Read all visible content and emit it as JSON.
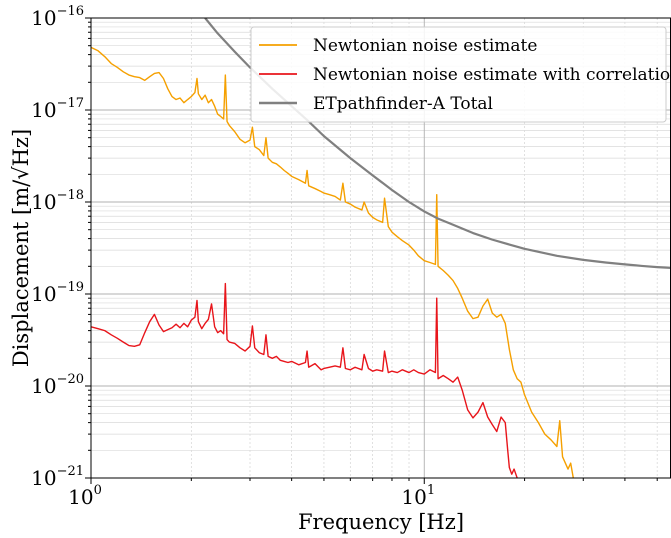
{
  "chart_data": {
    "type": "line",
    "title": "",
    "xlabel": "Frequency [Hz]",
    "ylabel": "Displacement [m/√Hz]",
    "xscale": "log",
    "yscale": "log",
    "xlim": [
      1,
      55
    ],
    "ylim": [
      1e-21,
      1e-16
    ],
    "grid": true,
    "legend_position": "top-right",
    "x_ticks": [
      {
        "value": 1,
        "base": "10",
        "exp": "0"
      },
      {
        "value": 10,
        "base": "10",
        "exp": "1"
      }
    ],
    "y_ticks": [
      {
        "value": 1e-21,
        "base": "10",
        "exp": "−21"
      },
      {
        "value": 1e-20,
        "base": "10",
        "exp": "−20"
      },
      {
        "value": 1e-19,
        "base": "10",
        "exp": "−19"
      },
      {
        "value": 1e-18,
        "base": "10",
        "exp": "−18"
      },
      {
        "value": 1e-17,
        "base": "10",
        "exp": "−17"
      },
      {
        "value": 1e-16,
        "base": "10",
        "exp": "−16"
      }
    ],
    "series": [
      {
        "name": "Newtonian noise estimate",
        "color": "#f5a000",
        "points": [
          [
            1.0,
            4.8e-17
          ],
          [
            1.05,
            4.4e-17
          ],
          [
            1.1,
            3.8e-17
          ],
          [
            1.15,
            3.2e-17
          ],
          [
            1.2,
            2.9e-17
          ],
          [
            1.25,
            2.6e-17
          ],
          [
            1.3,
            2.4e-17
          ],
          [
            1.35,
            2.3e-17
          ],
          [
            1.4,
            2.25e-17
          ],
          [
            1.45,
            2.1e-17
          ],
          [
            1.5,
            2.3e-17
          ],
          [
            1.55,
            2.5e-17
          ],
          [
            1.6,
            2.55e-17
          ],
          [
            1.65,
            2.2e-17
          ],
          [
            1.7,
            1.7e-17
          ],
          [
            1.75,
            1.4e-17
          ],
          [
            1.8,
            1.3e-17
          ],
          [
            1.85,
            1.35e-17
          ],
          [
            1.9,
            1.2e-17
          ],
          [
            1.95,
            1.3e-17
          ],
          [
            2.0,
            1.4e-17
          ],
          [
            2.05,
            1.55e-17
          ],
          [
            2.08,
            2.2e-17
          ],
          [
            2.1,
            1.5e-17
          ],
          [
            2.15,
            1.3e-17
          ],
          [
            2.2,
            1.45e-17
          ],
          [
            2.25,
            1.2e-17
          ],
          [
            2.3,
            1.3e-17
          ],
          [
            2.35,
            1.1e-17
          ],
          [
            2.4,
            9e-18
          ],
          [
            2.45,
            8.5e-18
          ],
          [
            2.5,
            8e-18
          ],
          [
            2.53,
            2.4e-17
          ],
          [
            2.56,
            7.5e-18
          ],
          [
            2.6,
            6.8e-18
          ],
          [
            2.7,
            5.8e-18
          ],
          [
            2.8,
            4.8e-18
          ],
          [
            2.9,
            4.4e-18
          ],
          [
            3.0,
            4.7e-18
          ],
          [
            3.05,
            6.5e-18
          ],
          [
            3.1,
            4e-18
          ],
          [
            3.2,
            3.7e-18
          ],
          [
            3.3,
            3.2e-18
          ],
          [
            3.35,
            5e-18
          ],
          [
            3.4,
            3e-18
          ],
          [
            3.5,
            2.7e-18
          ],
          [
            3.6,
            2.6e-18
          ],
          [
            3.7,
            2.4e-18
          ],
          [
            3.8,
            2.2e-18
          ],
          [
            3.9,
            2.05e-18
          ],
          [
            4.0,
            1.9e-18
          ],
          [
            4.2,
            1.75e-18
          ],
          [
            4.4,
            1.6e-18
          ],
          [
            4.45,
            2.2e-18
          ],
          [
            4.5,
            1.5e-18
          ],
          [
            4.7,
            1.4e-18
          ],
          [
            4.9,
            1.3e-18
          ],
          [
            5.0,
            1.25e-18
          ],
          [
            5.2,
            1.2e-18
          ],
          [
            5.4,
            1.15e-18
          ],
          [
            5.6,
            1.05e-18
          ],
          [
            5.7,
            1.6e-18
          ],
          [
            5.8,
            1e-18
          ],
          [
            6.0,
            9.5e-19
          ],
          [
            6.2,
            8.8e-19
          ],
          [
            6.5,
            8.2e-19
          ],
          [
            6.6,
            1e-18
          ],
          [
            6.8,
            7.6e-19
          ],
          [
            7.0,
            6.8e-19
          ],
          [
            7.2,
            6.4e-19
          ],
          [
            7.5,
            6e-19
          ],
          [
            7.6,
            1.1e-18
          ],
          [
            7.8,
            5.4e-19
          ],
          [
            8.0,
            4.7e-19
          ],
          [
            8.3,
            4.2e-19
          ],
          [
            8.6,
            3.8e-19
          ],
          [
            9.0,
            3.4e-19
          ],
          [
            9.3,
            3e-19
          ],
          [
            9.6,
            2.6e-19
          ],
          [
            10.0,
            2.3e-19
          ],
          [
            10.4,
            2.2e-19
          ],
          [
            10.8,
            2.1e-19
          ],
          [
            10.9,
            1.2e-18
          ],
          [
            11.0,
            2e-19
          ],
          [
            11.4,
            1.8e-19
          ],
          [
            11.8,
            1.6e-19
          ],
          [
            12.2,
            1.4e-19
          ],
          [
            12.6,
            1.15e-19
          ],
          [
            13.0,
            9e-20
          ],
          [
            13.5,
            6.5e-20
          ],
          [
            14.0,
            5.4e-20
          ],
          [
            14.5,
            5.6e-20
          ],
          [
            15.0,
            7.4e-20
          ],
          [
            15.5,
            8.8e-20
          ],
          [
            16.0,
            6.2e-20
          ],
          [
            16.5,
            5.6e-20
          ],
          [
            17.0,
            6e-20
          ],
          [
            17.5,
            4.8e-20
          ],
          [
            18.0,
            2.5e-20
          ],
          [
            18.5,
            1.5e-20
          ],
          [
            19.0,
            1.2e-20
          ],
          [
            19.5,
            1.1e-20
          ],
          [
            20.0,
            8e-21
          ],
          [
            21.0,
            5.2e-21
          ],
          [
            22.0,
            4e-21
          ],
          [
            23.0,
            3e-21
          ],
          [
            24.0,
            2.6e-21
          ],
          [
            25.0,
            2.2e-21
          ],
          [
            25.5,
            4.2e-21
          ],
          [
            26.0,
            1.7e-21
          ],
          [
            27.0,
            1.25e-21
          ],
          [
            27.5,
            1.45e-21
          ],
          [
            28.0,
            1e-21
          ]
        ]
      },
      {
        "name": "Newtonian noise estimate with correlations",
        "color": "#e8151b",
        "points": [
          [
            1.0,
            4.4e-20
          ],
          [
            1.05,
            4.2e-20
          ],
          [
            1.1,
            4e-20
          ],
          [
            1.15,
            3.6e-20
          ],
          [
            1.2,
            3.3e-20
          ],
          [
            1.25,
            3e-20
          ],
          [
            1.3,
            2.75e-20
          ],
          [
            1.35,
            2.7e-20
          ],
          [
            1.4,
            2.8e-20
          ],
          [
            1.45,
            3.8e-20
          ],
          [
            1.5,
            5e-20
          ],
          [
            1.55,
            6e-20
          ],
          [
            1.6,
            4.6e-20
          ],
          [
            1.65,
            3.9e-20
          ],
          [
            1.7,
            4.1e-20
          ],
          [
            1.75,
            4.3e-20
          ],
          [
            1.8,
            4.7e-20
          ],
          [
            1.85,
            4.3e-20
          ],
          [
            1.9,
            4.8e-20
          ],
          [
            1.95,
            4.4e-20
          ],
          [
            2.0,
            5.2e-20
          ],
          [
            2.05,
            5.6e-20
          ],
          [
            2.08,
            8.5e-20
          ],
          [
            2.1,
            5e-20
          ],
          [
            2.15,
            4.2e-20
          ],
          [
            2.2,
            4.8e-20
          ],
          [
            2.25,
            5.3e-20
          ],
          [
            2.3,
            7.8e-20
          ],
          [
            2.35,
            4.4e-20
          ],
          [
            2.4,
            3.8e-20
          ],
          [
            2.45,
            4e-20
          ],
          [
            2.5,
            3.7e-20
          ],
          [
            2.53,
            1.3e-19
          ],
          [
            2.56,
            3.2e-20
          ],
          [
            2.6,
            3e-20
          ],
          [
            2.7,
            2.9e-20
          ],
          [
            2.8,
            2.6e-20
          ],
          [
            2.9,
            2.4e-20
          ],
          [
            3.0,
            2.7e-20
          ],
          [
            3.05,
            4.5e-20
          ],
          [
            3.1,
            2.6e-20
          ],
          [
            3.2,
            2.3e-20
          ],
          [
            3.3,
            2.2e-20
          ],
          [
            3.35,
            3.6e-20
          ],
          [
            3.4,
            2.1e-20
          ],
          [
            3.5,
            2e-20
          ],
          [
            3.6,
            2.1e-20
          ],
          [
            3.7,
            1.9e-20
          ],
          [
            3.8,
            1.85e-20
          ],
          [
            3.9,
            1.8e-20
          ],
          [
            4.0,
            1.85e-20
          ],
          [
            4.2,
            1.7e-20
          ],
          [
            4.4,
            1.8e-20
          ],
          [
            4.45,
            2.4e-20
          ],
          [
            4.5,
            1.6e-20
          ],
          [
            4.7,
            1.75e-20
          ],
          [
            4.9,
            1.5e-20
          ],
          [
            5.0,
            1.55e-20
          ],
          [
            5.2,
            1.6e-20
          ],
          [
            5.4,
            1.65e-20
          ],
          [
            5.6,
            1.6e-20
          ],
          [
            5.7,
            2.6e-20
          ],
          [
            5.8,
            1.55e-20
          ],
          [
            6.0,
            1.5e-20
          ],
          [
            6.2,
            1.6e-20
          ],
          [
            6.5,
            1.5e-20
          ],
          [
            6.6,
            2.2e-20
          ],
          [
            6.8,
            1.55e-20
          ],
          [
            7.0,
            1.45e-20
          ],
          [
            7.2,
            1.5e-20
          ],
          [
            7.5,
            1.45e-20
          ],
          [
            7.6,
            2.4e-20
          ],
          [
            7.8,
            1.4e-20
          ],
          [
            8.0,
            1.45e-20
          ],
          [
            8.3,
            1.4e-20
          ],
          [
            8.6,
            1.5e-20
          ],
          [
            9.0,
            1.4e-20
          ],
          [
            9.3,
            1.5e-20
          ],
          [
            9.6,
            1.4e-20
          ],
          [
            10.0,
            1.35e-20
          ],
          [
            10.4,
            1.5e-20
          ],
          [
            10.8,
            1.4e-20
          ],
          [
            10.9,
            9e-20
          ],
          [
            11.0,
            1.2e-20
          ],
          [
            11.4,
            1.3e-20
          ],
          [
            11.8,
            1.2e-20
          ],
          [
            12.2,
            1.1e-20
          ],
          [
            12.6,
            1.25e-20
          ],
          [
            13.0,
            9e-21
          ],
          [
            13.5,
            5.5e-21
          ],
          [
            14.0,
            4.5e-21
          ],
          [
            14.5,
            5.2e-21
          ],
          [
            15.0,
            6.6e-21
          ],
          [
            15.5,
            4.6e-21
          ],
          [
            16.0,
            3.8e-21
          ],
          [
            16.5,
            3.2e-21
          ],
          [
            17.0,
            4.6e-21
          ],
          [
            17.5,
            4e-21
          ],
          [
            17.8,
            2e-21
          ],
          [
            18.0,
            1.3e-21
          ],
          [
            18.3,
            1.1e-21
          ],
          [
            18.6,
            1.25e-21
          ],
          [
            19.0,
            1e-21
          ]
        ]
      },
      {
        "name": "ETpathfinder-A Total",
        "color": "#808080",
        "points": [
          [
            2.2,
            1e-16
          ],
          [
            2.4,
            6.8e-17
          ],
          [
            2.7,
            4.3e-17
          ],
          [
            3.0,
            2.9e-17
          ],
          [
            3.5,
            1.7e-17
          ],
          [
            4.0,
            1.1e-17
          ],
          [
            4.5,
            7.5e-18
          ],
          [
            5.0,
            5.2e-18
          ],
          [
            6.0,
            3e-18
          ],
          [
            7.0,
            1.95e-18
          ],
          [
            8.0,
            1.35e-18
          ],
          [
            9.0,
            1e-18
          ],
          [
            10.0,
            7.9e-19
          ],
          [
            11.0,
            6.6e-19
          ],
          [
            12.0,
            5.8e-19
          ],
          [
            14.0,
            4.6e-19
          ],
          [
            16.0,
            3.9e-19
          ],
          [
            18.0,
            3.45e-19
          ],
          [
            20.0,
            3.1e-19
          ],
          [
            25.0,
            2.6e-19
          ],
          [
            30.0,
            2.35e-19
          ],
          [
            35.0,
            2.2e-19
          ],
          [
            40.0,
            2.1e-19
          ],
          [
            45.0,
            2.02e-19
          ],
          [
            50.0,
            1.96e-19
          ],
          [
            55.0,
            1.92e-19
          ]
        ]
      }
    ]
  }
}
